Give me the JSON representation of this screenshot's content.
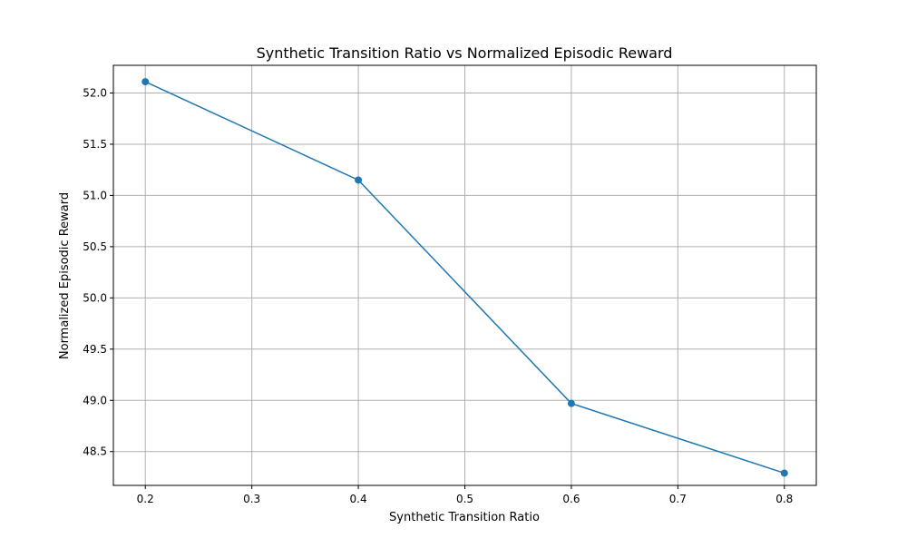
{
  "chart_data": {
    "type": "line",
    "title": "Synthetic Transition Ratio vs Normalized Episodic Reward",
    "xlabel": "Synthetic Transition Ratio",
    "ylabel": "Normalized Episodic Reward",
    "xlim": [
      0.17,
      0.83
    ],
    "ylim": [
      48.17,
      52.27
    ],
    "x_ticks": [
      0.2,
      0.3,
      0.4,
      0.5,
      0.6,
      0.7,
      0.8
    ],
    "x_tick_labels": [
      "0.2",
      "0.3",
      "0.4",
      "0.5",
      "0.6",
      "0.7",
      "0.8"
    ],
    "y_ticks": [
      48.5,
      49.0,
      49.5,
      50.0,
      50.5,
      51.0,
      51.5,
      52.0
    ],
    "y_tick_labels": [
      "48.5",
      "49.0",
      "49.5",
      "50.0",
      "50.5",
      "51.0",
      "51.5",
      "52.0"
    ],
    "grid": true,
    "series": [
      {
        "color": "#1f77b4",
        "marker": "circle",
        "x": [
          0.2,
          0.4,
          0.6,
          0.8
        ],
        "y": [
          52.11,
          51.15,
          48.97,
          48.29
        ]
      }
    ]
  }
}
